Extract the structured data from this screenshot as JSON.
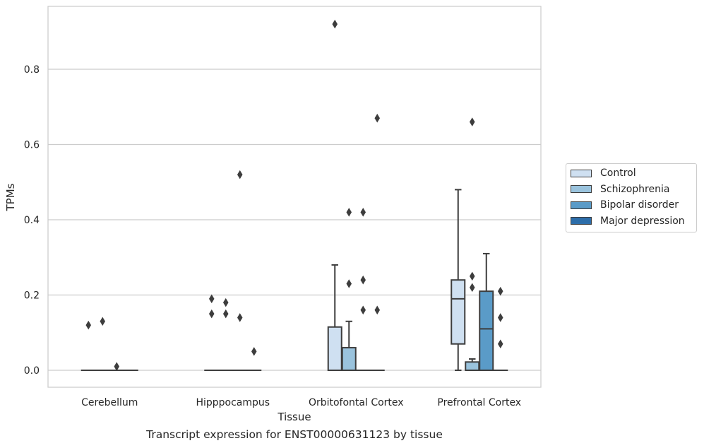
{
  "chart_data": {
    "type": "box",
    "xlabel": "Tissue",
    "ylabel": "TPMs",
    "caption": "Transcript expression for ENST00000631123 by tissue",
    "ylim": [
      -0.045,
      0.97
    ],
    "yticks": [
      0.0,
      0.2,
      0.4,
      0.6,
      0.8
    ],
    "ytick_labels": [
      "0.0",
      "0.2",
      "0.4",
      "0.6",
      "0.8"
    ],
    "grid": "horizontal",
    "legend_position": "right",
    "categories": [
      "Cerebellum",
      "Hipppocampus",
      "Orbitofontal Cortex",
      "Prefrontal Cortex"
    ],
    "series": [
      {
        "name": "Control",
        "color": "#cfe0f1"
      },
      {
        "name": "Schizophrenia",
        "color": "#9ac3dd"
      },
      {
        "name": "Bipolar disorder",
        "color": "#5a9bc8"
      },
      {
        "name": "Major depression",
        "color": "#2c6da9"
      }
    ],
    "boxes": [
      {
        "category": "Cerebellum",
        "series": "Control",
        "q1": 0,
        "median": 0,
        "q3": 0,
        "whisker_low": 0,
        "whisker_high": 0,
        "outliers": [
          0.12
        ]
      },
      {
        "category": "Cerebellum",
        "series": "Schizophrenia",
        "q1": 0,
        "median": 0,
        "q3": 0,
        "whisker_low": 0,
        "whisker_high": 0,
        "outliers": [
          0.13
        ]
      },
      {
        "category": "Cerebellum",
        "series": "Bipolar disorder",
        "q1": 0,
        "median": 0,
        "q3": 0,
        "whisker_low": 0,
        "whisker_high": 0,
        "outliers": [
          0.01
        ]
      },
      {
        "category": "Cerebellum",
        "series": "Major depression",
        "q1": 0,
        "median": 0,
        "q3": 0,
        "whisker_low": 0,
        "whisker_high": 0,
        "outliers": []
      },
      {
        "category": "Hipppocampus",
        "series": "Control",
        "q1": 0,
        "median": 0,
        "q3": 0,
        "whisker_low": 0,
        "whisker_high": 0,
        "outliers": [
          0.15,
          0.19
        ]
      },
      {
        "category": "Hipppocampus",
        "series": "Schizophrenia",
        "q1": 0,
        "median": 0,
        "q3": 0,
        "whisker_low": 0,
        "whisker_high": 0,
        "outliers": [
          0.15,
          0.18
        ]
      },
      {
        "category": "Hipppocampus",
        "series": "Bipolar disorder",
        "q1": 0,
        "median": 0,
        "q3": 0,
        "whisker_low": 0,
        "whisker_high": 0,
        "outliers": [
          0.14,
          0.52
        ]
      },
      {
        "category": "Hipppocampus",
        "series": "Major depression",
        "q1": 0,
        "median": 0,
        "q3": 0,
        "whisker_low": 0,
        "whisker_high": 0,
        "outliers": [
          0.05
        ]
      },
      {
        "category": "Orbitofontal Cortex",
        "series": "Control",
        "q1": 0,
        "median": 0,
        "q3": 0.115,
        "whisker_low": 0,
        "whisker_high": 0.28,
        "outliers": [
          0.92
        ]
      },
      {
        "category": "Orbitofontal Cortex",
        "series": "Schizophrenia",
        "q1": 0,
        "median": 0,
        "q3": 0.06,
        "whisker_low": 0,
        "whisker_high": 0.13,
        "outliers": [
          0.23,
          0.42
        ]
      },
      {
        "category": "Orbitofontal Cortex",
        "series": "Bipolar disorder",
        "q1": 0,
        "median": 0,
        "q3": 0,
        "whisker_low": 0,
        "whisker_high": 0,
        "outliers": [
          0.16,
          0.24,
          0.42
        ]
      },
      {
        "category": "Orbitofontal Cortex",
        "series": "Major depression",
        "q1": 0,
        "median": 0,
        "q3": 0,
        "whisker_low": 0,
        "whisker_high": 0,
        "outliers": [
          0.16,
          0.67
        ]
      },
      {
        "category": "Prefrontal Cortex",
        "series": "Control",
        "q1": 0.07,
        "median": 0.19,
        "q3": 0.24,
        "whisker_low": 0,
        "whisker_high": 0.48,
        "outliers": []
      },
      {
        "category": "Prefrontal Cortex",
        "series": "Schizophrenia",
        "q1": 0,
        "median": 0,
        "q3": 0.022,
        "whisker_low": 0,
        "whisker_high": 0.03,
        "outliers": [
          0.22,
          0.25,
          0.66
        ]
      },
      {
        "category": "Prefrontal Cortex",
        "series": "Bipolar disorder",
        "q1": 0,
        "median": 0.11,
        "q3": 0.21,
        "whisker_low": 0,
        "whisker_high": 0.31,
        "outliers": []
      },
      {
        "category": "Prefrontal Cortex",
        "series": "Major depression",
        "q1": 0,
        "median": 0,
        "q3": 0,
        "whisker_low": 0,
        "whisker_high": 0,
        "outliers": [
          0.07,
          0.14,
          0.21
        ]
      }
    ]
  }
}
